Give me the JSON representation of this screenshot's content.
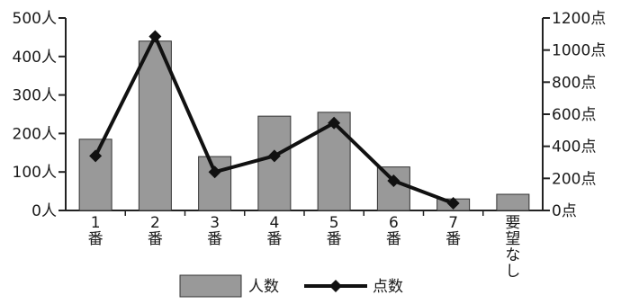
{
  "chart_data": {
    "type": "bar",
    "categories": [
      [
        "1",
        "番"
      ],
      [
        "2",
        "番"
      ],
      [
        "3",
        "番"
      ],
      [
        "4",
        "番"
      ],
      [
        "5",
        "番"
      ],
      [
        "6",
        "番"
      ],
      [
        "7",
        "番"
      ],
      [
        "要",
        "望",
        "な",
        "し"
      ]
    ],
    "series": [
      {
        "name": "人数",
        "type": "bar",
        "axis": "left",
        "values": [
          185,
          440,
          140,
          245,
          255,
          113,
          30,
          42
        ]
      },
      {
        "name": "点数",
        "type": "line",
        "axis": "right",
        "values": [
          340,
          1085,
          240,
          340,
          545,
          185,
          45,
          null
        ]
      }
    ],
    "yleft": {
      "ylim": [
        0,
        500
      ],
      "ticks": [
        0,
        100,
        200,
        300,
        400,
        500
      ],
      "tick_labels": [
        "0人",
        "100人",
        "200人",
        "300人",
        "400人",
        "500人"
      ]
    },
    "yright": {
      "ylim": [
        0,
        1200
      ],
      "ticks": [
        0,
        200,
        400,
        600,
        800,
        1000,
        1200
      ],
      "tick_labels": [
        "0点",
        "200点",
        "400点",
        "600点",
        "800点",
        "1000点",
        "1200点"
      ]
    },
    "legend": {
      "position": "bottom",
      "entries": [
        "人数",
        "点数"
      ]
    },
    "grid": false,
    "colors": {
      "bar_fill": "#999999",
      "bar_stroke": "#333333",
      "line": "#111111",
      "marker": "#111111",
      "axis": "#222222"
    }
  }
}
